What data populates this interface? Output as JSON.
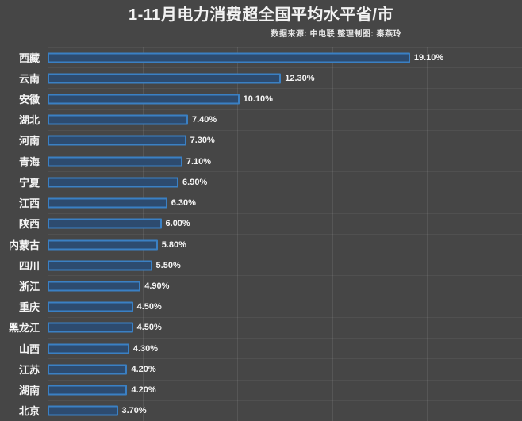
{
  "header": {
    "title": "1-11月电力消费超全国平均水平省/市",
    "source_note": "数据来源: 中电联 整理制图: 秦燕玲"
  },
  "colors": {
    "background": "#464646",
    "bar_border": "#3a80c4",
    "bar_fill": "#2d4b6f",
    "grid_line": "#565656",
    "row_line": "rgba(255,255,255,0.06)",
    "text": "#f2f2f2"
  },
  "chart_data": {
    "type": "bar",
    "orientation": "horizontal",
    "title": "1-11月电力消费超全国平均水平省/市",
    "source_note": "数据来源: 中电联 整理制图: 秦燕玲",
    "categories": [
      "西藏",
      "云南",
      "安徽",
      "湖北",
      "河南",
      "青海",
      "宁夏",
      "江西",
      "陕西",
      "内蒙古",
      "四川",
      "浙江",
      "重庆",
      "黑龙江",
      "山西",
      "江苏",
      "湖南",
      "北京"
    ],
    "values": [
      19.1,
      12.3,
      10.1,
      7.4,
      7.3,
      7.1,
      6.9,
      6.3,
      6.0,
      5.8,
      5.5,
      4.9,
      4.5,
      4.5,
      4.3,
      4.2,
      4.2,
      3.7
    ],
    "value_labels": [
      "19.10%",
      "12.30%",
      "10.10%",
      "7.40%",
      "7.30%",
      "7.10%",
      "6.90%",
      "6.30%",
      "6.00%",
      "5.80%",
      "5.50%",
      "4.90%",
      "4.50%",
      "4.50%",
      "4.30%",
      "4.20%",
      "4.20%",
      "3.70%"
    ],
    "xlabel": "",
    "ylabel": "",
    "xlim": [
      0,
      25
    ],
    "gridline_interval": 5,
    "grid": true,
    "legend": false,
    "bar_style": "outlined"
  }
}
